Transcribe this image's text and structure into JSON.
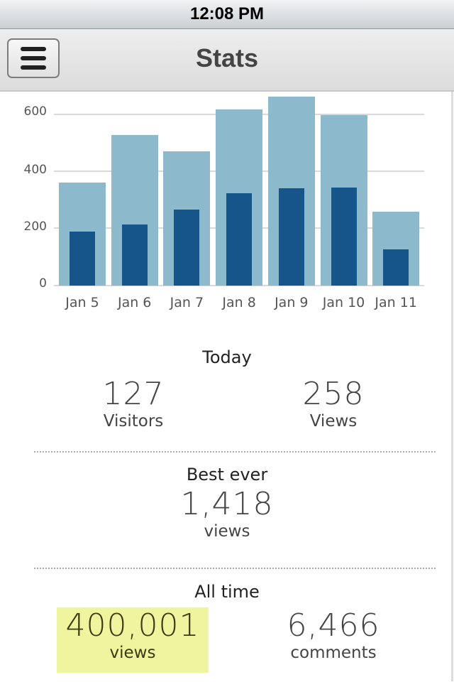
{
  "status_bar": {
    "time": "12:08 PM"
  },
  "nav": {
    "title": "Stats",
    "menu_icon": "hamburger-menu-icon"
  },
  "colors": {
    "views_bar": "#8db9cd",
    "visitors_bar": "#155589",
    "highlight": "#eff59e"
  },
  "chart_data": {
    "type": "bar",
    "title": "",
    "xlabel": "",
    "ylabel": "",
    "categories": [
      "Jan 5",
      "Jan 6",
      "Jan 7",
      "Jan 8",
      "Jan 9",
      "Jan 10",
      "Jan 11"
    ],
    "series": [
      {
        "name": "Views",
        "color": "#8db9cd",
        "values": [
          361,
          528,
          470,
          617,
          662,
          597,
          258
        ]
      },
      {
        "name": "Visitors",
        "color": "#155589",
        "values": [
          189,
          214,
          266,
          324,
          341,
          344,
          127
        ]
      }
    ],
    "yticks": [
      "0",
      "200",
      "400",
      "600"
    ],
    "ylim": [
      0,
      600
    ],
    "grid": true,
    "legend": "none"
  },
  "today": {
    "title": "Today",
    "visitors_value": "127",
    "visitors_label": "Visitors",
    "views_value": "258",
    "views_label": "Views"
  },
  "best_ever": {
    "title": "Best ever",
    "value": "1,418",
    "label": "views"
  },
  "all_time": {
    "title": "All time",
    "views_value": "400,001",
    "views_label": "views",
    "comments_value": "6,466",
    "comments_label": "comments"
  }
}
